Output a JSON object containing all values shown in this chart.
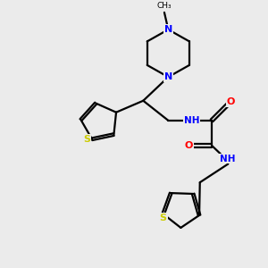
{
  "background_color": "#ebebeb",
  "bond_color": "#000000",
  "nitrogen_color": "#0000ff",
  "oxygen_color": "#ff0000",
  "sulfur_color": "#cccc00",
  "line_width": 1.6,
  "dbo": 0.06,
  "xlim": [
    0,
    10
  ],
  "ylim": [
    0,
    10
  ],
  "figsize": [
    3.0,
    3.0
  ],
  "dpi": 100
}
